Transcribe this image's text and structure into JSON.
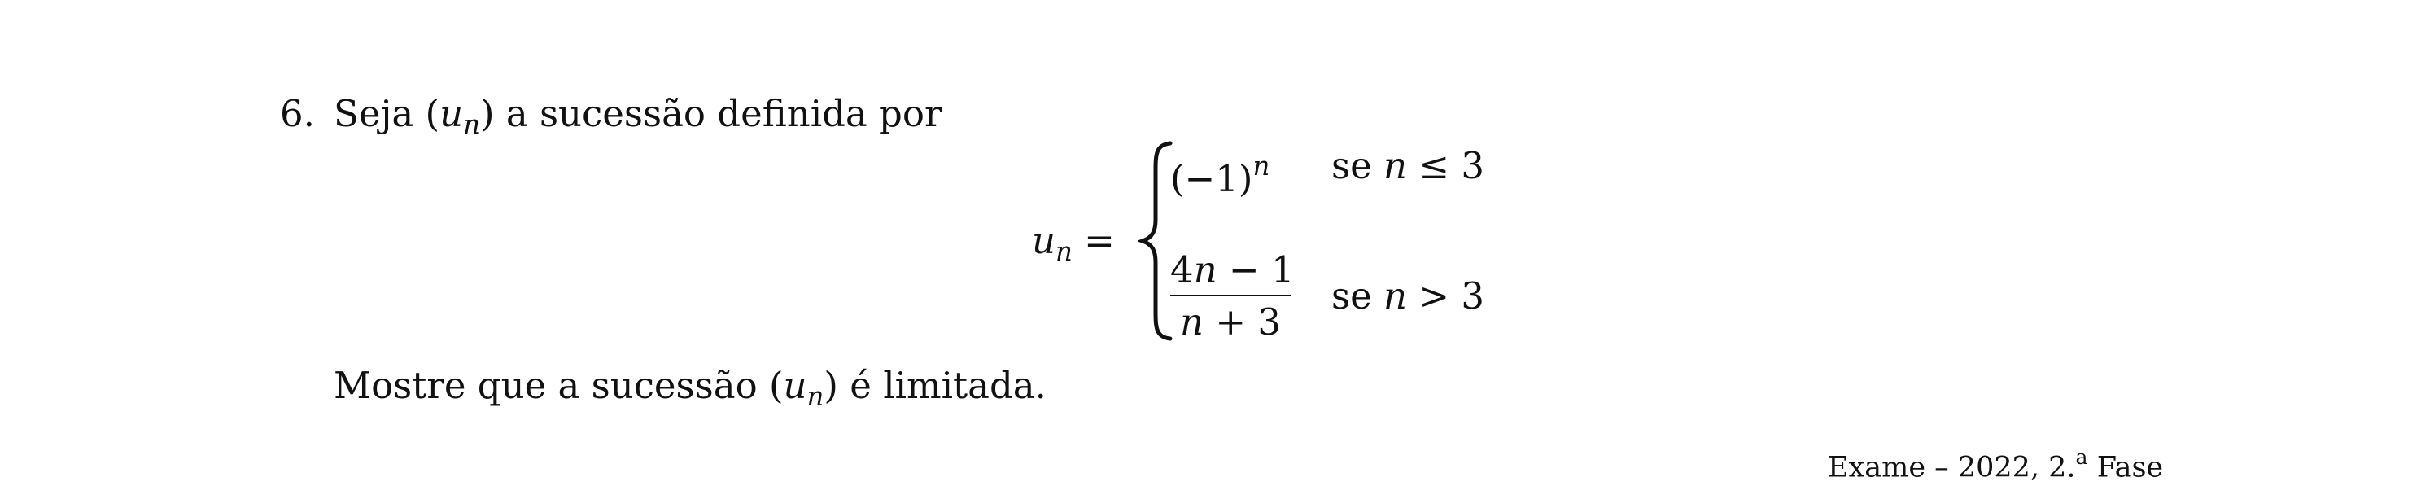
{
  "header": {
    "cropped_text": "· · ·"
  },
  "problem": {
    "number": "6.",
    "intro_before": "Seja ",
    "sequence_open": "(",
    "sequence_var": "u",
    "sequence_sub": "n",
    "sequence_close": ")",
    "intro_after": " a sucessão definida por"
  },
  "equation": {
    "lhs_var": "u",
    "lhs_sub": "n",
    "equals": " = ",
    "case1": {
      "expr_base": "(−1)",
      "expr_exp": "n",
      "cond_word": "se ",
      "cond_var": "n",
      "cond_rest": " ≤ 3"
    },
    "case2": {
      "numerator_a": "4",
      "numerator_var": "n",
      "numerator_b": " − 1",
      "denominator_var": "n",
      "denominator_b": " + 3",
      "cond_word": "se ",
      "cond_var": "n",
      "cond_rest": " > 3"
    }
  },
  "closing": {
    "before": "Mostre que a sucessão ",
    "open": "(",
    "var": "u",
    "sub": "n",
    "close": ")",
    "after": " é limitada."
  },
  "source": {
    "before": "Exame – 2022, 2.",
    "ordinal": "a",
    "after": " Fase"
  }
}
